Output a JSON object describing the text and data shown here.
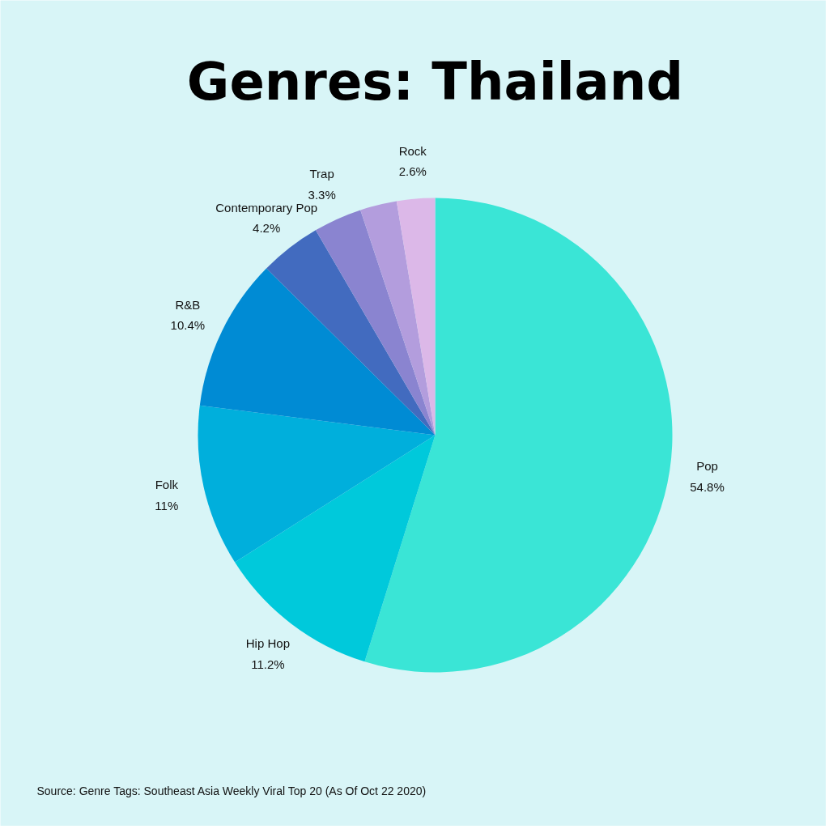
{
  "chart_data": {
    "type": "pie",
    "title": "Genres: Thailand",
    "categories": [
      "Pop",
      "Hip Hop",
      "Folk",
      "R&B",
      "Contemporary Pop",
      "Trap",
      null,
      "Rock"
    ],
    "values": [
      54.8,
      11.2,
      11,
      10.4,
      4.2,
      3.3,
      2.5,
      2.6
    ],
    "colors": [
      "#3ae5d6",
      "#00c9db",
      "#00afdc",
      "#008bd4",
      "#426bbf",
      "#8a84d0",
      "#b39ddd",
      "#dcb8e8"
    ],
    "value_labels": [
      "54.8%",
      "11.2%",
      "11%",
      "10.4%",
      "4.2%",
      "3.3%",
      null,
      "2.6%"
    ],
    "annotations": [
      "Source: Genre Tags: Southeast Asia Weekly Viral Top 20 (As Of Oct 22 2020)"
    ]
  }
}
